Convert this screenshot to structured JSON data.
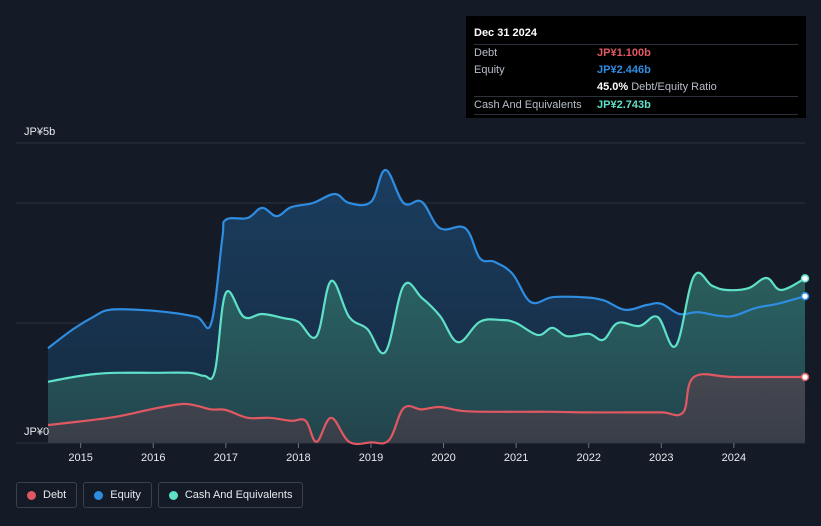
{
  "chart_data": {
    "type": "area",
    "y_axis": {
      "top_label": "JP¥5b",
      "bottom_label": "JP¥0",
      "ylim": [
        0,
        5
      ]
    },
    "x_ticks": [
      "2015",
      "2016",
      "2017",
      "2018",
      "2019",
      "2020",
      "2021",
      "2022",
      "2023",
      "2024"
    ],
    "xlim": [
      2014.55,
      2024.98
    ],
    "grid": true,
    "series": [
      {
        "name": "Equity",
        "color": "#2e8de0",
        "points": [
          [
            2014.55,
            1.58
          ],
          [
            2014.9,
            1.9
          ],
          [
            2015.2,
            2.12
          ],
          [
            2015.4,
            2.22
          ],
          [
            2015.8,
            2.22
          ],
          [
            2016.2,
            2.18
          ],
          [
            2016.6,
            2.1
          ],
          [
            2016.8,
            2.0
          ],
          [
            2016.95,
            3.4
          ],
          [
            2017.0,
            3.72
          ],
          [
            2017.3,
            3.75
          ],
          [
            2017.5,
            3.92
          ],
          [
            2017.7,
            3.78
          ],
          [
            2017.9,
            3.93
          ],
          [
            2018.2,
            4.0
          ],
          [
            2018.5,
            4.15
          ],
          [
            2018.7,
            4.0
          ],
          [
            2019.0,
            4.02
          ],
          [
            2019.2,
            4.55
          ],
          [
            2019.45,
            4.0
          ],
          [
            2019.7,
            4.02
          ],
          [
            2019.95,
            3.58
          ],
          [
            2020.3,
            3.58
          ],
          [
            2020.5,
            3.08
          ],
          [
            2020.7,
            3.02
          ],
          [
            2020.95,
            2.82
          ],
          [
            2021.2,
            2.35
          ],
          [
            2021.5,
            2.43
          ],
          [
            2021.9,
            2.43
          ],
          [
            2022.2,
            2.38
          ],
          [
            2022.5,
            2.22
          ],
          [
            2022.8,
            2.3
          ],
          [
            2023.0,
            2.32
          ],
          [
            2023.25,
            2.15
          ],
          [
            2023.5,
            2.18
          ],
          [
            2023.8,
            2.12
          ],
          [
            2024.0,
            2.12
          ],
          [
            2024.3,
            2.25
          ],
          [
            2024.6,
            2.32
          ],
          [
            2024.98,
            2.446
          ]
        ]
      },
      {
        "name": "Cash And Equivalents",
        "color": "#5fe0c9",
        "points": [
          [
            2014.55,
            1.02
          ],
          [
            2014.9,
            1.1
          ],
          [
            2015.2,
            1.15
          ],
          [
            2015.5,
            1.17
          ],
          [
            2016.0,
            1.17
          ],
          [
            2016.5,
            1.17
          ],
          [
            2016.7,
            1.12
          ],
          [
            2016.85,
            1.2
          ],
          [
            2017.0,
            2.5
          ],
          [
            2017.25,
            2.1
          ],
          [
            2017.5,
            2.15
          ],
          [
            2017.8,
            2.08
          ],
          [
            2018.0,
            2.02
          ],
          [
            2018.25,
            1.78
          ],
          [
            2018.45,
            2.7
          ],
          [
            2018.7,
            2.1
          ],
          [
            2018.95,
            1.9
          ],
          [
            2019.2,
            1.52
          ],
          [
            2019.45,
            2.62
          ],
          [
            2019.7,
            2.42
          ],
          [
            2019.95,
            2.12
          ],
          [
            2020.2,
            1.68
          ],
          [
            2020.5,
            2.02
          ],
          [
            2020.8,
            2.05
          ],
          [
            2021.0,
            2.0
          ],
          [
            2021.3,
            1.8
          ],
          [
            2021.5,
            1.92
          ],
          [
            2021.7,
            1.78
          ],
          [
            2022.0,
            1.82
          ],
          [
            2022.2,
            1.72
          ],
          [
            2022.4,
            2.0
          ],
          [
            2022.7,
            1.95
          ],
          [
            2022.95,
            2.1
          ],
          [
            2023.2,
            1.62
          ],
          [
            2023.45,
            2.78
          ],
          [
            2023.7,
            2.62
          ],
          [
            2023.9,
            2.55
          ],
          [
            2024.2,
            2.58
          ],
          [
            2024.45,
            2.75
          ],
          [
            2024.65,
            2.55
          ],
          [
            2024.98,
            2.743
          ]
        ]
      },
      {
        "name": "Debt",
        "color": "#e05861",
        "points": [
          [
            2014.55,
            0.3
          ],
          [
            2015.0,
            0.36
          ],
          [
            2015.5,
            0.44
          ],
          [
            2016.0,
            0.57
          ],
          [
            2016.4,
            0.65
          ],
          [
            2016.6,
            0.62
          ],
          [
            2016.8,
            0.56
          ],
          [
            2017.0,
            0.55
          ],
          [
            2017.3,
            0.42
          ],
          [
            2017.6,
            0.42
          ],
          [
            2017.9,
            0.37
          ],
          [
            2018.1,
            0.37
          ],
          [
            2018.25,
            0.02
          ],
          [
            2018.45,
            0.42
          ],
          [
            2018.7,
            0.02
          ],
          [
            2019.0,
            0.01
          ],
          [
            2019.25,
            0.05
          ],
          [
            2019.45,
            0.58
          ],
          [
            2019.7,
            0.56
          ],
          [
            2019.95,
            0.6
          ],
          [
            2020.3,
            0.53
          ],
          [
            2021.0,
            0.52
          ],
          [
            2021.5,
            0.52
          ],
          [
            2022.0,
            0.51
          ],
          [
            2022.5,
            0.51
          ],
          [
            2023.0,
            0.51
          ],
          [
            2023.3,
            0.51
          ],
          [
            2023.45,
            1.1
          ],
          [
            2024.0,
            1.1
          ],
          [
            2024.98,
            1.1
          ]
        ]
      }
    ]
  },
  "tooltip": {
    "date": "Dec 31 2024",
    "rows": [
      {
        "label": "Debt",
        "value": "JP¥1.100b",
        "color": "#e05861"
      },
      {
        "label": "Equity",
        "value": "JP¥2.446b",
        "color": "#2e8de0"
      },
      {
        "label": "",
        "value": "45.0%",
        "suffix": "Debt/Equity Ratio",
        "color": "#ffffff"
      },
      {
        "label": "Cash And Equivalents",
        "value": "JP¥2.743b",
        "color": "#5fe0c9"
      }
    ]
  },
  "legend": [
    {
      "label": "Debt",
      "color": "#e05861"
    },
    {
      "label": "Equity",
      "color": "#2e8de0"
    },
    {
      "label": "Cash And Equivalents",
      "color": "#5fe0c9"
    }
  ]
}
